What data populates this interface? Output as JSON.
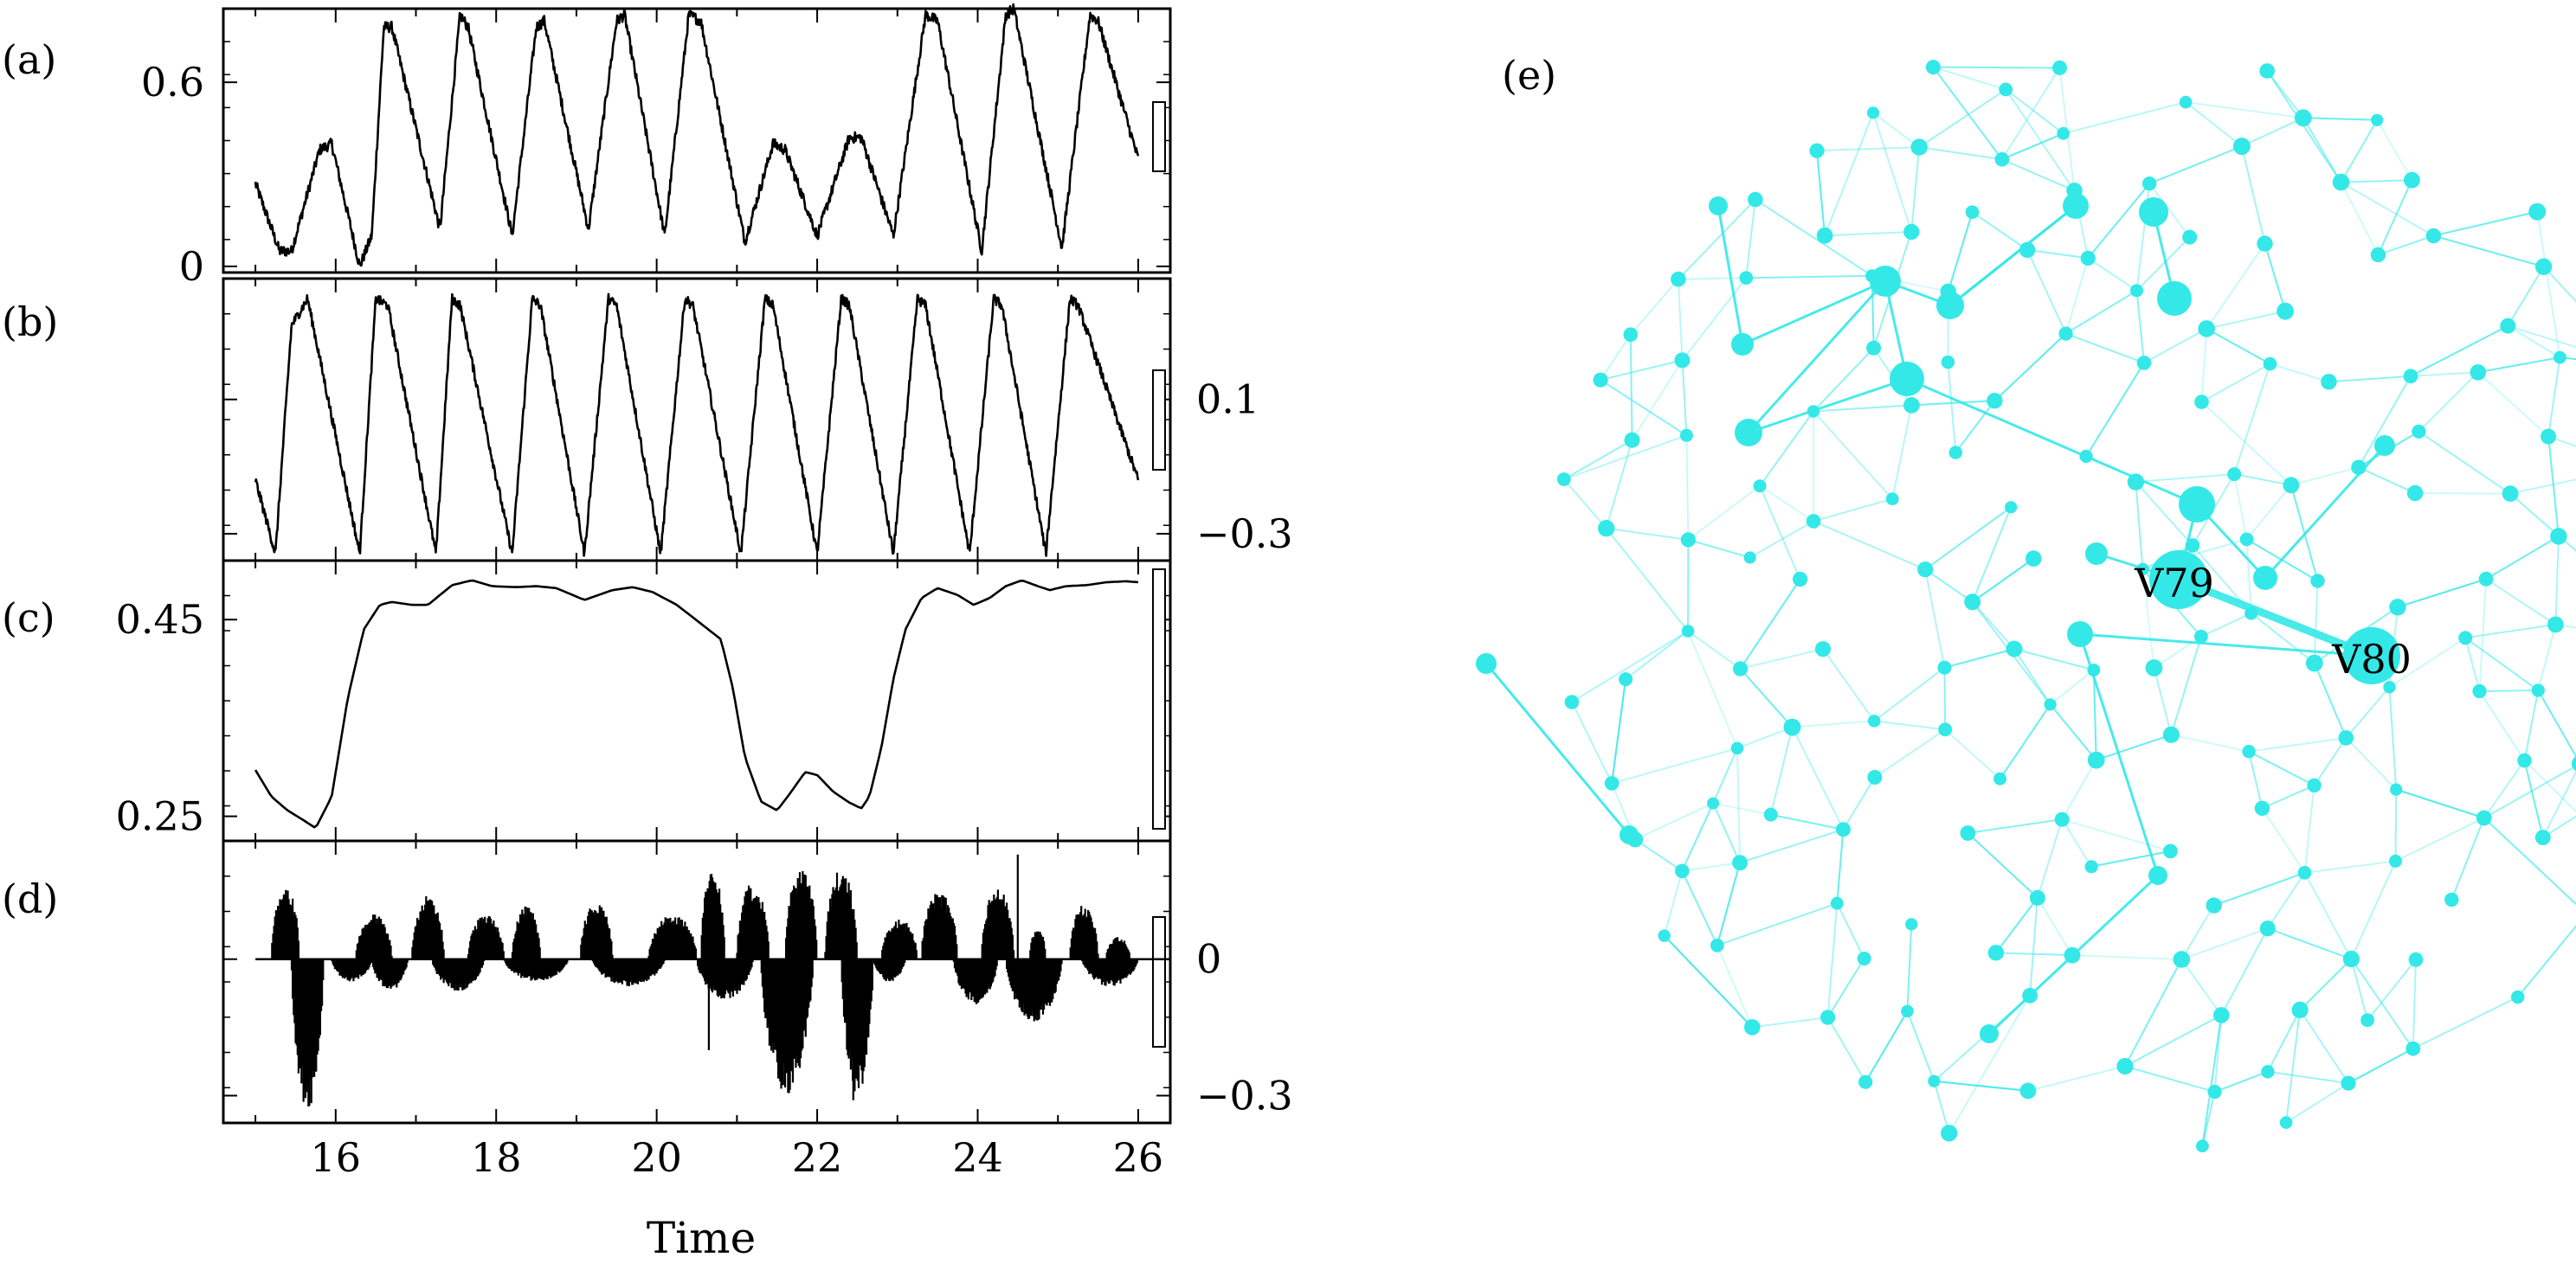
{
  "chart_data": [
    {
      "panel": "(a)",
      "type": "line",
      "x_start": 15.0,
      "x_end": 26.0,
      "xlim": [
        14.6,
        26.4
      ],
      "ylim": [
        -0.02,
        0.84
      ],
      "yticks": [
        0,
        0.6
      ],
      "ytick_labels": [
        "0",
        "0.6"
      ],
      "yaxis_side": "left",
      "noise": 0.018,
      "keypoints": [
        [
          15.0,
          0.27
        ],
        [
          15.3,
          0.05
        ],
        [
          15.45,
          0.05
        ],
        [
          15.8,
          0.38
        ],
        [
          15.95,
          0.4
        ],
        [
          16.3,
          0.0
        ],
        [
          16.45,
          0.1
        ],
        [
          16.6,
          0.78
        ],
        [
          16.7,
          0.78
        ],
        [
          17.1,
          0.34
        ],
        [
          17.3,
          0.12
        ],
        [
          17.55,
          0.82
        ],
        [
          17.65,
          0.78
        ],
        [
          18.2,
          0.1
        ],
        [
          18.5,
          0.78
        ],
        [
          18.6,
          0.8
        ],
        [
          19.15,
          0.12
        ],
        [
          19.5,
          0.8
        ],
        [
          19.6,
          0.82
        ],
        [
          20.1,
          0.1
        ],
        [
          20.4,
          0.82
        ],
        [
          20.55,
          0.8
        ],
        [
          21.1,
          0.08
        ],
        [
          21.45,
          0.4
        ],
        [
          21.6,
          0.38
        ],
        [
          22.0,
          0.1
        ],
        [
          22.4,
          0.42
        ],
        [
          22.55,
          0.42
        ],
        [
          22.95,
          0.1
        ],
        [
          23.35,
          0.82
        ],
        [
          23.5,
          0.8
        ],
        [
          24.05,
          0.05
        ],
        [
          24.35,
          0.82
        ],
        [
          24.45,
          0.84
        ],
        [
          25.05,
          0.06
        ],
        [
          25.4,
          0.82
        ],
        [
          25.5,
          0.8
        ],
        [
          26.0,
          0.35
        ]
      ]
    },
    {
      "panel": "(b)",
      "type": "line",
      "x_start": 15.0,
      "x_end": 26.0,
      "xlim": [
        14.6,
        26.4
      ],
      "ylim": [
        -0.38,
        0.46
      ],
      "yticks": [
        0.1,
        -0.3
      ],
      "ytick_labels": [
        "0.1",
        "−0.3"
      ],
      "yaxis_side": "right",
      "noise": 0.015,
      "keypoints": [
        [
          15.0,
          -0.14
        ],
        [
          15.25,
          -0.36
        ],
        [
          15.45,
          0.32
        ],
        [
          15.65,
          0.4
        ],
        [
          16.3,
          -0.36
        ],
        [
          16.5,
          0.4
        ],
        [
          16.65,
          0.38
        ],
        [
          17.25,
          -0.36
        ],
        [
          17.45,
          0.4
        ],
        [
          17.55,
          0.38
        ],
        [
          18.2,
          -0.36
        ],
        [
          18.45,
          0.4
        ],
        [
          18.55,
          0.38
        ],
        [
          19.1,
          -0.36
        ],
        [
          19.4,
          0.4
        ],
        [
          19.5,
          0.38
        ],
        [
          20.05,
          -0.36
        ],
        [
          20.35,
          0.4
        ],
        [
          20.45,
          0.38
        ],
        [
          21.05,
          -0.36
        ],
        [
          21.35,
          0.4
        ],
        [
          21.45,
          0.38
        ],
        [
          22.0,
          -0.36
        ],
        [
          22.3,
          0.4
        ],
        [
          22.4,
          0.38
        ],
        [
          22.95,
          -0.36
        ],
        [
          23.25,
          0.4
        ],
        [
          23.35,
          0.38
        ],
        [
          23.9,
          -0.36
        ],
        [
          24.2,
          0.4
        ],
        [
          24.3,
          0.38
        ],
        [
          24.85,
          -0.36
        ],
        [
          25.15,
          0.4
        ],
        [
          25.25,
          0.38
        ],
        [
          26.0,
          -0.14
        ]
      ]
    },
    {
      "panel": "(c)",
      "type": "line",
      "x_start": 15.0,
      "x_end": 26.0,
      "xlim": [
        14.6,
        26.4
      ],
      "ylim": [
        0.225,
        0.51
      ],
      "yticks": [
        0.45,
        0.25
      ],
      "ytick_labels": [
        "0.45",
        "0.25"
      ],
      "yaxis_side": "left",
      "noise": 0,
      "keypoints": [
        [
          15.0,
          0.297
        ],
        [
          15.2,
          0.27
        ],
        [
          15.4,
          0.256
        ],
        [
          15.6,
          0.246
        ],
        [
          15.75,
          0.238
        ],
        [
          15.95,
          0.27
        ],
        [
          16.15,
          0.37
        ],
        [
          16.35,
          0.44
        ],
        [
          16.55,
          0.465
        ],
        [
          16.7,
          0.468
        ],
        [
          16.95,
          0.465
        ],
        [
          17.15,
          0.465
        ],
        [
          17.45,
          0.485
        ],
        [
          17.7,
          0.49
        ],
        [
          17.95,
          0.484
        ],
        [
          18.25,
          0.483
        ],
        [
          18.5,
          0.484
        ],
        [
          18.75,
          0.482
        ],
        [
          19.1,
          0.47
        ],
        [
          19.45,
          0.48
        ],
        [
          19.7,
          0.483
        ],
        [
          19.95,
          0.478
        ],
        [
          20.25,
          0.465
        ],
        [
          20.55,
          0.446
        ],
        [
          20.8,
          0.43
        ],
        [
          20.95,
          0.38
        ],
        [
          21.1,
          0.31
        ],
        [
          21.3,
          0.265
        ],
        [
          21.5,
          0.256
        ],
        [
          21.65,
          0.272
        ],
        [
          21.85,
          0.295
        ],
        [
          22.0,
          0.292
        ],
        [
          22.2,
          0.275
        ],
        [
          22.4,
          0.264
        ],
        [
          22.55,
          0.258
        ],
        [
          22.65,
          0.27
        ],
        [
          22.8,
          0.32
        ],
        [
          22.95,
          0.39
        ],
        [
          23.1,
          0.44
        ],
        [
          23.3,
          0.472
        ],
        [
          23.5,
          0.482
        ],
        [
          23.75,
          0.475
        ],
        [
          23.95,
          0.465
        ],
        [
          24.15,
          0.472
        ],
        [
          24.35,
          0.484
        ],
        [
          24.55,
          0.49
        ],
        [
          24.75,
          0.484
        ],
        [
          24.9,
          0.48
        ],
        [
          25.1,
          0.484
        ],
        [
          25.35,
          0.485
        ],
        [
          25.6,
          0.488
        ],
        [
          25.85,
          0.489
        ],
        [
          26.0,
          0.488
        ]
      ]
    },
    {
      "panel": "(d)",
      "type": "bar",
      "x_start": 15.0,
      "x_end": 26.0,
      "xlim": [
        14.6,
        26.4
      ],
      "ylim": [
        -0.36,
        0.26
      ],
      "yticks": [
        0,
        -0.3
      ],
      "ytick_labels": [
        "0",
        "−0.3"
      ],
      "yaxis_side": "right",
      "noise": 0.25,
      "pos_lobes": [
        [
          15.2,
          15.55,
          0.16
        ],
        [
          16.25,
          16.7,
          0.1
        ],
        [
          16.95,
          17.35,
          0.14
        ],
        [
          17.65,
          18.1,
          0.1
        ],
        [
          18.2,
          18.55,
          0.12
        ],
        [
          19.05,
          19.45,
          0.13
        ],
        [
          19.9,
          20.5,
          0.1
        ],
        [
          20.55,
          20.85,
          0.2
        ],
        [
          21.0,
          21.4,
          0.17
        ],
        [
          21.6,
          22.0,
          0.2
        ],
        [
          22.1,
          22.5,
          0.2
        ],
        [
          22.8,
          23.25,
          0.09
        ],
        [
          23.3,
          23.75,
          0.15
        ],
        [
          24.05,
          24.45,
          0.16
        ],
        [
          24.65,
          24.85,
          0.07
        ],
        [
          25.15,
          25.5,
          0.12
        ],
        [
          25.6,
          25.9,
          0.05
        ]
      ],
      "neg_lobes": [
        [
          15.45,
          15.85,
          -0.33
        ],
        [
          15.95,
          16.45,
          -0.05
        ],
        [
          16.45,
          16.9,
          -0.07
        ],
        [
          17.2,
          17.85,
          -0.07
        ],
        [
          18.1,
          18.9,
          -0.05
        ],
        [
          19.2,
          20.1,
          -0.06
        ],
        [
          20.5,
          21.2,
          -0.09
        ],
        [
          21.3,
          21.95,
          -0.3
        ],
        [
          22.3,
          22.7,
          -0.3
        ],
        [
          22.7,
          23.1,
          -0.05
        ],
        [
          23.7,
          24.25,
          -0.1
        ],
        [
          24.35,
          25.05,
          -0.14
        ],
        [
          25.3,
          26.0,
          -0.06
        ]
      ],
      "spikes": [
        [
          20.65,
          -0.2
        ],
        [
          24.5,
          0.23
        ],
        [
          22.45,
          -0.31
        ]
      ]
    }
  ],
  "x_axis": {
    "ticks": [
      16,
      18,
      20,
      22,
      24,
      26
    ],
    "tick_labels": [
      "16",
      "18",
      "20",
      "22",
      "24",
      "26"
    ],
    "label": "Time"
  },
  "panel_labels": [
    "(a)",
    "(b)",
    "(c)",
    "(d)",
    "(e)"
  ],
  "network": {
    "panel": "(e)",
    "type": "network",
    "node_color": "#34e8e8",
    "labeled_nodes": [
      "V79",
      "V80"
    ],
    "labels": {
      "V79": "V79",
      "V80": "V80"
    }
  }
}
